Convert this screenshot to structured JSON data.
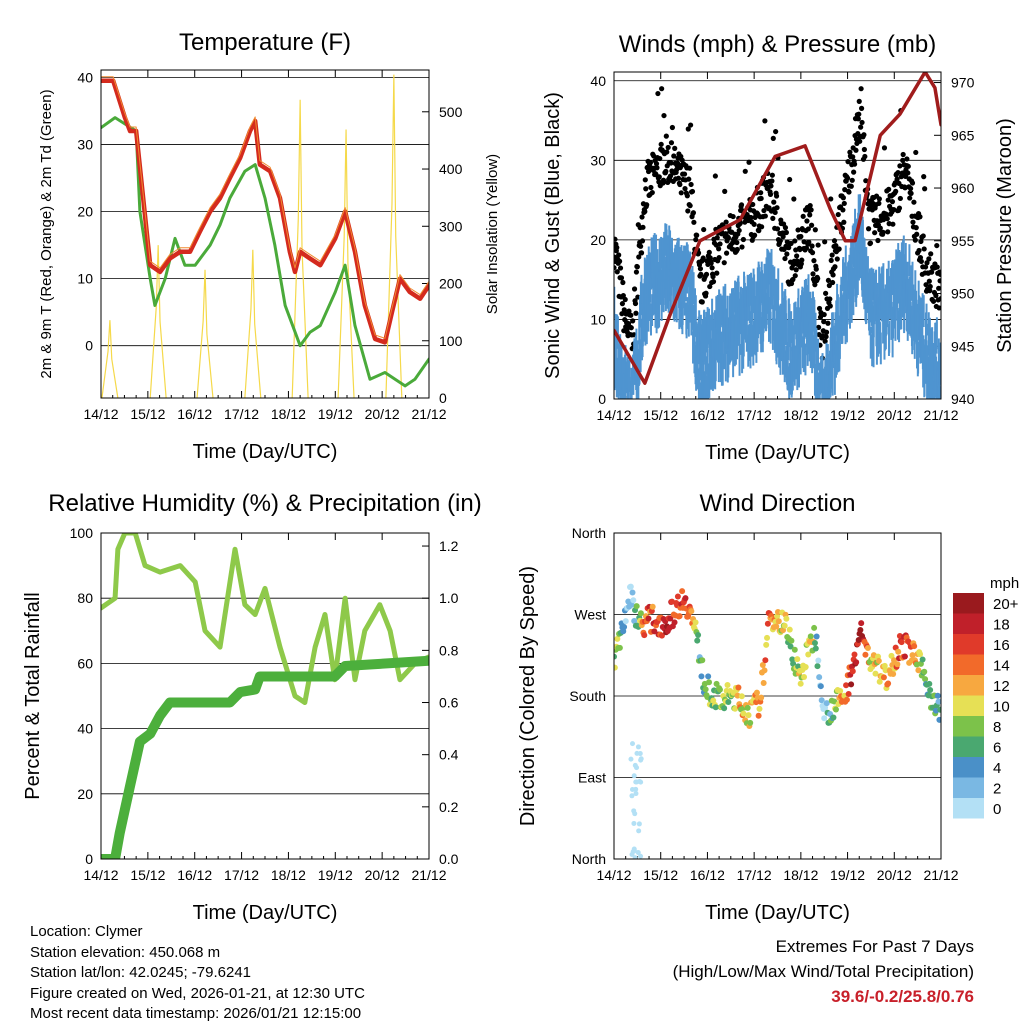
{
  "chart_data": [
    {
      "type": "line",
      "title": "Temperature (F)",
      "xlabel": "Time (Day/UTC)",
      "ylabel": "2m & 9m T (Red, Orange) & 2m Td (Green)",
      "ylabel_right": "Solar Insolation (Yellow)",
      "x_ticks": [
        "14/12",
        "15/12",
        "16/12",
        "17/12",
        "18/12",
        "19/12",
        "20/12",
        "21/12"
      ],
      "y_ticks": [
        0,
        10,
        20,
        30,
        40
      ],
      "y_ticks_right": [
        0,
        100,
        200,
        300,
        400,
        500
      ],
      "ylim": [
        -7.8,
        41.1
      ],
      "ylim_right": [
        0,
        573
      ],
      "xlim": [
        0,
        7
      ],
      "series": [
        {
          "name": "2m T",
          "color": "#d42a1e",
          "x": [
            0,
            0.26,
            0.51,
            0.62,
            0.75,
            0.9,
            1.05,
            1.26,
            1.47,
            1.69,
            1.9,
            2.11,
            2.33,
            2.54,
            2.75,
            2.97,
            3.18,
            3.29,
            3.39,
            3.61,
            3.82,
            4.03,
            4.14,
            4.25,
            4.46,
            4.68,
            5.0,
            5.21,
            5.42,
            5.63,
            5.85,
            6.06,
            6.21,
            6.38,
            6.59,
            6.81,
            7.0
          ],
          "y": [
            39.5,
            39.5,
            34,
            32,
            32,
            22,
            12,
            11,
            13,
            14,
            14,
            17,
            20,
            22,
            25,
            28,
            32,
            33.5,
            27,
            26,
            22,
            14,
            11,
            14,
            13,
            12,
            16,
            20,
            14,
            6,
            1,
            0.5,
            5,
            10,
            8,
            7,
            9
          ]
        },
        {
          "name": "2m Td",
          "color": "#4aaa3a",
          "x": [
            0,
            0.3,
            0.75,
            0.83,
            1.05,
            1.15,
            1.37,
            1.58,
            1.79,
            2.01,
            2.33,
            2.54,
            2.75,
            3.07,
            3.29,
            3.5,
            3.71,
            3.93,
            4.25,
            4.46,
            4.68,
            5.0,
            5.21,
            5.42,
            5.74,
            6.06,
            6.49,
            6.7,
            7.0
          ],
          "y": [
            32.5,
            34,
            32,
            20,
            10,
            6,
            10,
            16,
            12,
            12,
            15,
            18,
            22,
            26,
            27,
            22,
            15,
            6,
            0,
            2,
            3,
            8,
            12,
            3,
            -5,
            -4,
            -6,
            -5,
            -2
          ]
        },
        {
          "name": "Solar Insolation",
          "color": "#f5d94a",
          "axis": "right",
          "peaks_x": [
            0.19,
            1.22,
            2.22,
            3.24,
            4.25,
            5.23,
            6.25
          ],
          "peaks_y": [
            136,
            267,
            224,
            259,
            521,
            469,
            565
          ]
        }
      ]
    },
    {
      "type": "scatter",
      "title": "Winds (mph) & Pressure (mb)",
      "xlabel": "Time (Day/UTC)",
      "ylabel": "Sonic Wind & Gust (Blue, Black)",
      "ylabel_right": "Station Pressure (Maroon)",
      "x_ticks": [
        "14/12",
        "15/12",
        "16/12",
        "17/12",
        "18/12",
        "19/12",
        "20/12",
        "21/12"
      ],
      "y_ticks": [
        0,
        10,
        20,
        30,
        40
      ],
      "y_ticks_right": [
        940,
        945,
        950,
        955,
        960,
        965,
        970
      ],
      "ylim": [
        0,
        41.1
      ],
      "ylim_right": [
        940,
        971
      ],
      "xlim": [
        0,
        7
      ],
      "series": [
        {
          "name": "Sonic Wind",
          "color": "#4f94d0",
          "x": [
            0,
            0.24,
            0.39,
            0.66,
            1.09,
            1.63,
            1.84,
            2.27,
            2.91,
            3.34,
            3.77,
            4.2,
            4.45,
            4.84,
            5.27,
            5.48,
            5.91,
            6.23,
            6.66,
            7.0
          ],
          "y": [
            10,
            3,
            1,
            15,
            18,
            15,
            6,
            10,
            12,
            15,
            8,
            12,
            1,
            12,
            22,
            12,
            13,
            17,
            8,
            5
          ]
        },
        {
          "name": "Gust",
          "color": "#000000",
          "derived_from": "Sonic Wind",
          "max": 39
        },
        {
          "name": "Station Pressure",
          "color": "#a01c1c",
          "axis": "right",
          "x": [
            0,
            0.66,
            1.2,
            1.84,
            2.7,
            3.45,
            4.09,
            4.63,
            4.95,
            5.16,
            5.7,
            6.12,
            6.66,
            6.87,
            7.0
          ],
          "y": [
            946.5,
            941.5,
            948,
            955,
            957,
            963,
            964,
            958,
            955,
            955,
            965,
            967,
            971,
            969.5,
            966
          ]
        }
      ]
    },
    {
      "type": "line",
      "title": "Relative Humidity (%) & Precipitation (in)",
      "xlabel": "Time (Day/UTC)",
      "ylabel": "Percent & Total Rainfall",
      "x_ticks": [
        "14/12",
        "15/12",
        "16/12",
        "17/12",
        "18/12",
        "19/12",
        "20/12",
        "21/12"
      ],
      "y_ticks": [
        0,
        20,
        40,
        60,
        80,
        100
      ],
      "y_ticks_right": [
        "0.0",
        "0.2",
        "0.4",
        "0.6",
        "0.8",
        "1.0",
        "1.2"
      ],
      "ylim": [
        0,
        100
      ],
      "ylim_right": [
        0,
        1.25
      ],
      "xlim": [
        0,
        7
      ],
      "series": [
        {
          "name": "Relative Humidity",
          "color": "#8ec94a",
          "x": [
            0,
            0.3,
            0.36,
            0.51,
            0.73,
            0.94,
            1.26,
            1.69,
            2.01,
            2.22,
            2.54,
            2.86,
            3.07,
            3.29,
            3.5,
            3.82,
            4.14,
            4.35,
            4.57,
            4.78,
            4.99,
            5.21,
            5.42,
            5.63,
            5.95,
            6.17,
            6.38,
            6.7,
            7.0
          ],
          "y": [
            77,
            80,
            95,
            100,
            100,
            90,
            88,
            90,
            85,
            70,
            65,
            95,
            78,
            75,
            83,
            65,
            50,
            48,
            65,
            75,
            55,
            80,
            55,
            70,
            78,
            70,
            55,
            60,
            62
          ]
        },
        {
          "name": "Total Precipitation",
          "color": "#4caf3c",
          "axis": "right",
          "x": [
            0,
            0.3,
            0.4,
            0.62,
            0.83,
            1.05,
            1.26,
            1.47,
            2.75,
            2.97,
            3.29,
            3.39,
            4.99,
            5.21,
            7.0
          ],
          "y": [
            0,
            0,
            0.1,
            0.28,
            0.45,
            0.48,
            0.55,
            0.6,
            0.6,
            0.64,
            0.65,
            0.7,
            0.7,
            0.74,
            0.76
          ]
        }
      ]
    },
    {
      "type": "scatter",
      "title": "Wind Direction",
      "xlabel": "Time (Day/UTC)",
      "ylabel": "Direction (Colored By Speed)",
      "x_ticks": [
        "14/12",
        "15/12",
        "16/12",
        "17/12",
        "18/12",
        "19/12",
        "20/12",
        "21/12"
      ],
      "y_ticks": [
        "North",
        "East",
        "South",
        "West",
        "North"
      ],
      "y_tick_values": [
        0,
        90,
        180,
        270,
        360
      ],
      "ylim": [
        0,
        360
      ],
      "xlim": [
        0,
        7
      ],
      "series": [
        {
          "name": "Direction",
          "x": [
            0,
            0.24,
            0.34,
            0.56,
            0.77,
            1.09,
            1.52,
            1.73,
            1.95,
            2.27,
            2.59,
            2.91,
            3.13,
            3.34,
            3.66,
            3.98,
            4.3,
            4.52,
            4.73,
            4.95,
            5.27,
            5.48,
            5.8,
            6.12,
            6.38,
            6.66,
            6.87,
            7.0
          ],
          "y": [
            220,
            270,
            290,
            260,
            265,
            260,
            290,
            255,
            190,
            175,
            180,
            160,
            175,
            270,
            260,
            200,
            250,
            160,
            170,
            180,
            250,
            220,
            200,
            235,
            230,
            200,
            170,
            165
          ]
        }
      ],
      "legend": {
        "title": "mph",
        "placement": "right",
        "labels": [
          "20+",
          "18",
          "16",
          "14",
          "12",
          "10",
          "8",
          "6",
          "4",
          "2",
          "0"
        ],
        "colors": [
          "#9a1a1e",
          "#c0202a",
          "#e03a2a",
          "#f26a2a",
          "#f7a840",
          "#e6e055",
          "#7cc24a",
          "#4aa870",
          "#4a90c8",
          "#7ab8e3",
          "#b3e0f5"
        ]
      }
    }
  ],
  "info": {
    "location": "Location: Clymer",
    "elevation": "Station elevation: 450.068 m",
    "latlon": "Station lat/lon: 42.0245; -79.6241",
    "created": "Figure created on Wed, 2026-01-21, at 12:30 UTC",
    "recent": "Most recent data timestamp: 2026/01/21 12:15:00"
  },
  "extremes": {
    "title": "Extremes For Past 7 Days",
    "subtitle": "(High/Low/Max Wind/Total Precipitation)",
    "values": "39.6/-0.2/25.8/0.76"
  }
}
